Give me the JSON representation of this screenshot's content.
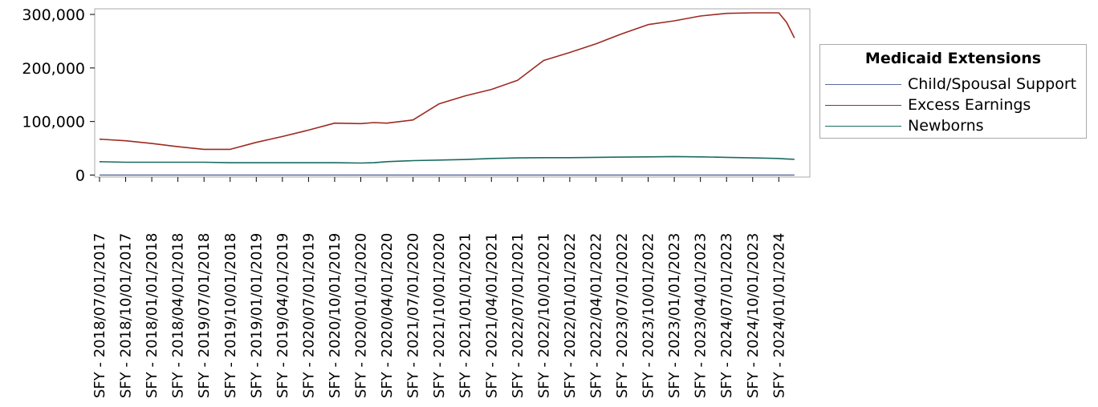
{
  "chart_data": {
    "type": "line",
    "title": "",
    "xlabel": "",
    "ylabel": "",
    "ylim": [
      0,
      315000
    ],
    "yticks": [
      0,
      100000,
      200000,
      300000
    ],
    "ytick_labels": [
      "0",
      "100,000",
      "200,000",
      "300,000"
    ],
    "categories": [
      "SFY - 2018/07/01/2017",
      "SFY - 2018/10/01/2017",
      "SFY - 2018/01/01/2018",
      "SFY - 2018/04/01/2018",
      "SFY - 2019/07/01/2018",
      "SFY - 2019/10/01/2018",
      "SFY - 2019/01/01/2019",
      "SFY - 2019/04/01/2019",
      "SFY - 2020/07/01/2019",
      "SFY - 2020/10/01/2019",
      "SFY - 2020/01/01/2020",
      "SFY - 2020/04/01/2020",
      "SFY - 2021/07/01/2020",
      "SFY - 2021/10/01/2020",
      "SFY - 2021/01/01/2021",
      "SFY - 2021/04/01/2021",
      "SFY - 2022/07/01/2021",
      "SFY - 2022/10/01/2021",
      "SFY - 2022/01/01/2022",
      "SFY - 2022/04/01/2022",
      "SFY - 2023/07/01/2022",
      "SFY - 2023/10/01/2022",
      "SFY - 2023/01/01/2023",
      "SFY - 2023/04/01/2023",
      "SFY - 2024/07/01/2023",
      "SFY - 2024/10/01/2023",
      "SFY - 2024/01/01/2024"
    ],
    "x": [
      0,
      1,
      2,
      3,
      4,
      5,
      6,
      7,
      8,
      9,
      10,
      10.5,
      11,
      12,
      13,
      14,
      15,
      16,
      17,
      18,
      19,
      20,
      21,
      22,
      23,
      24,
      25,
      26,
      26.3,
      26.6
    ],
    "series": [
      {
        "name": "Child/Spousal Support",
        "color": "#5b6aa0",
        "values": [
          0,
          0,
          0,
          0,
          0,
          0,
          0,
          0,
          0,
          0,
          0,
          0,
          0,
          0,
          0,
          0,
          0,
          0,
          0,
          0,
          0,
          0,
          0,
          0,
          0,
          0,
          0,
          0,
          0,
          0
        ]
      },
      {
        "name": "Excess Earnings",
        "color": "#9e2a22",
        "values": [
          67000,
          64000,
          59000,
          53000,
          48000,
          48000,
          61000,
          72000,
          84000,
          97000,
          96000,
          98000,
          97000,
          103000,
          133000,
          148000,
          160000,
          177000,
          214000,
          229000,
          245000,
          264000,
          281000,
          288000,
          297000,
          302000,
          303000,
          303000,
          285000,
          256000
        ]
      },
      {
        "name": "Newborns",
        "color": "#1a6b60",
        "values": [
          25000,
          24000,
          24000,
          24000,
          24000,
          23000,
          23000,
          23000,
          23000,
          23000,
          22500,
          23000,
          25000,
          27000,
          28000,
          29000,
          31000,
          32000,
          32500,
          32500,
          33000,
          33500,
          34000,
          34500,
          34000,
          33000,
          32000,
          31000,
          30000,
          29500
        ]
      }
    ],
    "legend": {
      "title": "Medicaid Extensions",
      "placement": "right"
    },
    "grid": false
  }
}
